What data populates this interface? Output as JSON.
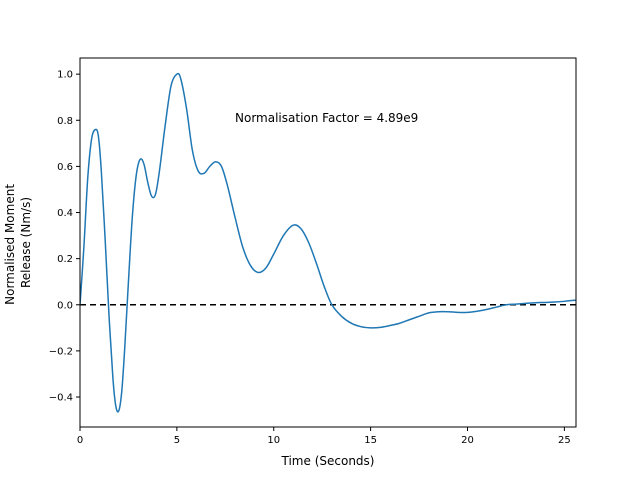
{
  "chart_data": {
    "type": "line",
    "title": "",
    "xlabel": "Time (Seconds)",
    "ylabel_lines": [
      "Normalised Moment",
      "Release (Nm/s)"
    ],
    "xlim": [
      0,
      25.6
    ],
    "ylim": [
      -0.53,
      1.07
    ],
    "xticks": [
      0,
      5,
      10,
      15,
      20,
      25
    ],
    "yticks": [
      -0.4,
      -0.2,
      0.0,
      0.2,
      0.4,
      0.6,
      0.8,
      1.0
    ],
    "xtick_labels": [
      "0",
      "5",
      "10",
      "15",
      "20",
      "25"
    ],
    "ytick_labels": [
      "−0.4",
      "−0.2",
      "0.0",
      "0.2",
      "0.4",
      "0.6",
      "0.8",
      "1.0"
    ],
    "grid": false,
    "annotation": {
      "text": "Normalisation Factor = 4.89e9",
      "x": 8.0,
      "y": 0.81
    },
    "reference_line": {
      "y": 0.0,
      "style": "dashed",
      "color": "#000000"
    },
    "series": [
      {
        "color": "#1f77b4",
        "x": [
          0,
          0.2,
          0.4,
          0.6,
          0.8,
          0.95,
          1.1,
          1.3,
          1.5,
          1.7,
          1.85,
          2.0,
          2.15,
          2.3,
          2.5,
          2.7,
          2.9,
          3.1,
          3.3,
          3.5,
          3.7,
          3.9,
          4.1,
          4.4,
          4.7,
          5.0,
          5.2,
          5.5,
          5.8,
          6.1,
          6.4,
          6.7,
          7.0,
          7.3,
          7.6,
          8.0,
          8.4,
          8.8,
          9.2,
          9.6,
          10.0,
          10.5,
          11.0,
          11.4,
          11.8,
          12.2,
          12.6,
          13.0,
          13.5,
          14.0,
          14.5,
          15.0,
          15.5,
          16.0,
          16.5,
          17.0,
          17.5,
          18.0,
          18.5,
          19.0,
          19.5,
          20.0,
          20.5,
          21.0,
          21.5,
          22.0,
          22.5,
          23.0,
          23.5,
          24.0,
          24.5,
          25.0,
          25.6
        ],
        "y": [
          0.0,
          0.25,
          0.55,
          0.72,
          0.76,
          0.73,
          0.58,
          0.28,
          -0.05,
          -0.32,
          -0.44,
          -0.46,
          -0.38,
          -0.2,
          0.1,
          0.38,
          0.56,
          0.63,
          0.61,
          0.53,
          0.47,
          0.48,
          0.58,
          0.78,
          0.95,
          1.0,
          0.98,
          0.85,
          0.67,
          0.58,
          0.57,
          0.6,
          0.62,
          0.6,
          0.52,
          0.38,
          0.25,
          0.17,
          0.14,
          0.16,
          0.22,
          0.3,
          0.345,
          0.33,
          0.27,
          0.18,
          0.08,
          0.0,
          -0.05,
          -0.08,
          -0.095,
          -0.1,
          -0.098,
          -0.09,
          -0.08,
          -0.065,
          -0.05,
          -0.035,
          -0.03,
          -0.03,
          -0.033,
          -0.033,
          -0.028,
          -0.02,
          -0.01,
          0.0,
          0.003,
          0.006,
          0.009,
          0.01,
          0.012,
          0.015,
          0.02
        ]
      }
    ]
  }
}
